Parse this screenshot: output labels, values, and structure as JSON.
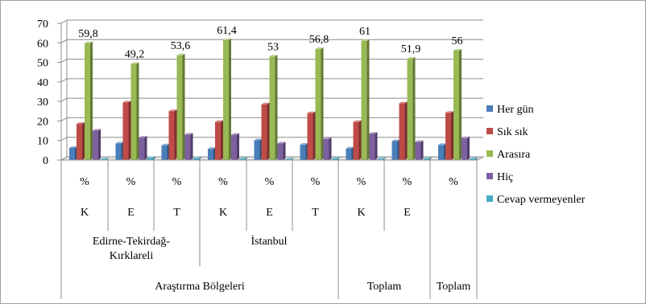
{
  "chart_data": {
    "type": "bar",
    "title": "",
    "xlabel": "",
    "ylabel": "",
    "ylim": [
      0,
      70
    ],
    "yticks": [
      0,
      10,
      20,
      30,
      40,
      50,
      60,
      70
    ],
    "grid": true,
    "legend_position": "right",
    "categories": [
      "%",
      "%",
      "%",
      "%",
      "%",
      "%",
      "%",
      "%",
      "%"
    ],
    "category_groups": [
      "K",
      "E",
      "T",
      "K",
      "E",
      "T",
      "K",
      "E",
      ""
    ],
    "region_labels": [
      "Edirne-Tekirdağ-Kırklareli",
      "İstanbul"
    ],
    "bottom_labels": [
      "Araştırma Bölgeleri",
      "Toplam",
      "Toplam"
    ],
    "series": [
      {
        "name": "Her gün",
        "color": "#4a7ebb",
        "values": [
          6.2,
          8.5,
          7.5,
          5.7,
          10.1,
          7.8,
          5.9,
          9.7,
          7.7
        ]
      },
      {
        "name": "Sık sık",
        "color": "#be4b48",
        "values": [
          18.5,
          29.5,
          25.0,
          19.5,
          28.5,
          24.0,
          19.5,
          29.0,
          24.2
        ]
      },
      {
        "name": "Arasıra",
        "color": "#98b954",
        "values": [
          59.8,
          49.2,
          53.6,
          61.4,
          53,
          56.8,
          61,
          51.9,
          56
        ]
      },
      {
        "name": "Hiç",
        "color": "#7d60a0",
        "values": [
          15.1,
          11.5,
          13.0,
          12.9,
          8.5,
          10.8,
          13.5,
          9.2,
          11.2
        ]
      },
      {
        "name": "Cevap vermeyenler",
        "color": "#46aac5",
        "values": [
          0.3,
          1.0,
          0.8,
          0.6,
          0.4,
          0.6,
          0.5,
          0.7,
          0.6
        ]
      }
    ],
    "data_labels": [
      "59,8",
      "49,2",
      "53,6",
      "61,4",
      "53",
      "56,8",
      "61",
      "51,9",
      "56"
    ]
  }
}
